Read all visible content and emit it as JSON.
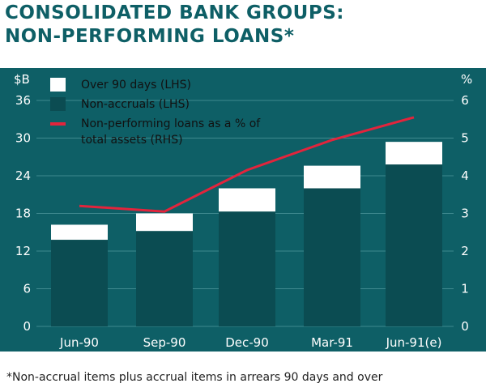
{
  "title": {
    "line1": "CONSOLIDATED BANK GROUPS:",
    "line2": "NON-PERFORMING LOANS*"
  },
  "footnote": "*Non-accrual items plus accrual items in arrears 90 days and over",
  "colors": {
    "background": "#0e5f66",
    "non_accruals": "#0e5f66",
    "over_90_days": "#ffffff",
    "ratio_line": "#e2243c",
    "gridline": "#3f8a8f",
    "title": "#0e5f66"
  },
  "chart_data": {
    "type": "bar",
    "stacked": true,
    "categories": [
      "Jun-90",
      "Sep-90",
      "Dec-90",
      "Mar-91",
      "Jun-91(e)"
    ],
    "series": [
      {
        "name": "Non-accruals (LHS)",
        "values": [
          13.8,
          15.2,
          18.3,
          22.0,
          25.8
        ],
        "axis": "left"
      },
      {
        "name": "Over 90 days (LHS)",
        "values": [
          2.4,
          2.8,
          3.7,
          3.6,
          3.6
        ],
        "axis": "left"
      },
      {
        "name": "Non-performing loans as a % of total assets (RHS)",
        "type": "line",
        "values": [
          3.2,
          3.05,
          4.15,
          4.95,
          5.55
        ],
        "axis": "right"
      }
    ],
    "left_axis": {
      "unit": "$B",
      "ticks": [
        "0",
        "6",
        "12",
        "18",
        "24",
        "30",
        "36"
      ],
      "ylim": [
        0,
        36
      ]
    },
    "right_axis": {
      "unit": "%",
      "ticks": [
        "0",
        "1",
        "2",
        "3",
        "4",
        "5",
        "6"
      ],
      "ylim": [
        0,
        6
      ]
    },
    "legend": {
      "placement": "top-left",
      "items": [
        {
          "label": "Over 90 days (LHS)",
          "kind": "box"
        },
        {
          "label": "Non-accruals (LHS)",
          "kind": "box"
        },
        {
          "label_line1": "Non-performing loans as a % of",
          "label_line2": "total assets (RHS)",
          "kind": "line"
        }
      ]
    },
    "grid": true
  }
}
